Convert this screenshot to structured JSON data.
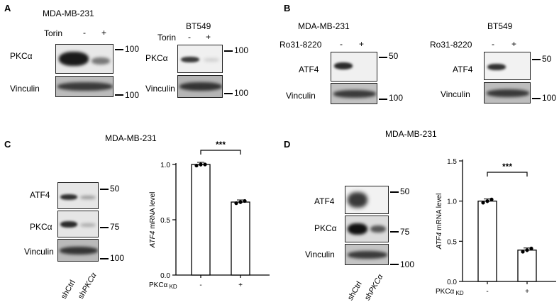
{
  "panels": {
    "A": {
      "label": "A",
      "left": {
        "cell_line": "MDA-MB-231",
        "treatment": "Torin",
        "minus": "-",
        "plus": "+",
        "rows": [
          {
            "protein": "PKCα",
            "mw": "100"
          },
          {
            "protein": "Vinculin",
            "mw": "100"
          }
        ]
      },
      "right": {
        "cell_line": "BT549",
        "treatment": "Torin",
        "minus": "-",
        "plus": "+",
        "rows": [
          {
            "protein": "PKCα",
            "mw": "100"
          },
          {
            "protein": "Vinculin",
            "mw": "100"
          }
        ]
      }
    },
    "B": {
      "label": "B",
      "left": {
        "cell_line": "MDA-MB-231",
        "treatment": "Ro31-8220",
        "minus": "-",
        "plus": "+",
        "rows": [
          {
            "protein": "ATF4",
            "mw": "50"
          },
          {
            "protein": "Vinculin",
            "mw": "100"
          }
        ]
      },
      "right": {
        "cell_line": "BT549",
        "treatment": "Ro31-8220",
        "minus": "-",
        "plus": "+",
        "rows": [
          {
            "protein": "ATF4",
            "mw": "50"
          },
          {
            "protein": "Vinculin",
            "mw": "100"
          }
        ]
      }
    },
    "C": {
      "label": "C",
      "cell_line": "MDA-MB-231",
      "rows": [
        {
          "protein": "ATF4",
          "mw": "50"
        },
        {
          "protein": "PKCα",
          "mw": "75"
        },
        {
          "protein": "Vinculin",
          "mw": "100"
        }
      ],
      "lanes": [
        "shCtrl",
        "sh",
        "PKCα"
      ]
    },
    "D": {
      "label": "D",
      "cell_line": "MDA-MB-231",
      "rows": [
        {
          "protein": "ATF4",
          "mw": "50"
        },
        {
          "protein": "PKCα",
          "mw": "75"
        },
        {
          "protein": "Vinculin",
          "mw": "100"
        }
      ],
      "lanes": [
        "shCtrl",
        "sh",
        "PKCα"
      ]
    }
  },
  "chart_data": [
    {
      "type": "bar",
      "panel": "C",
      "categories": [
        "-",
        "+"
      ],
      "values": [
        1.0,
        0.66
      ],
      "points": [
        [
          0.99,
          1.0,
          1.0
        ],
        [
          0.65,
          0.66,
          0.67
        ]
      ],
      "ylim": [
        0,
        1.0
      ],
      "yticks": [
        "0.0",
        "0.5",
        "1.0"
      ],
      "ylabel_italic": "ATF4",
      "ylabel_rest": " mRNA level",
      "xgroup_label": "PKCα",
      "xgroup_sub": "KD",
      "significance": "***"
    },
    {
      "type": "bar",
      "panel": "D",
      "categories": [
        "-",
        "+"
      ],
      "values": [
        1.0,
        0.39
      ],
      "points": [
        [
          0.98,
          1.0,
          1.02
        ],
        [
          0.37,
          0.39,
          0.41
        ]
      ],
      "ylim": [
        0,
        1.5
      ],
      "yticks": [
        "0.0",
        "0.5",
        "1.0",
        "1.5"
      ],
      "ylabel_italic": "ATF4",
      "ylabel_rest": " mRNA level",
      "xgroup_label": "PKCα",
      "xgroup_sub": "KD",
      "significance": "***"
    }
  ]
}
